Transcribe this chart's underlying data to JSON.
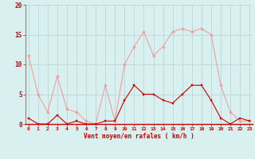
{
  "hours": [
    0,
    1,
    2,
    3,
    4,
    5,
    6,
    7,
    8,
    9,
    10,
    11,
    12,
    13,
    14,
    15,
    16,
    17,
    18,
    19,
    20,
    21,
    22,
    23
  ],
  "wind_avg": [
    1,
    0,
    0,
    1.5,
    0,
    0.5,
    0,
    0,
    0.5,
    0.5,
    4,
    6.5,
    5,
    5,
    4,
    3.5,
    5,
    6.5,
    6.5,
    4,
    1,
    0,
    1,
    0.5
  ],
  "wind_gust": [
    11.5,
    5,
    2,
    8,
    2.5,
    2,
    0.5,
    0,
    6.5,
    0.5,
    10,
    13,
    15.5,
    11.5,
    13,
    15.5,
    16,
    15.5,
    16,
    15,
    6.5,
    2,
    0.5,
    0.5
  ],
  "color_avg": "#cc0000",
  "color_gust": "#f0a0a0",
  "bg_color": "#d8f0f0",
  "grid_color": "#b8d0d0",
  "axis_color": "#cc0000",
  "border_color": "#888888",
  "xlabel": "Vent moyen/en rafales ( km/h )",
  "ylim": [
    0,
    20
  ],
  "yticks": [
    0,
    5,
    10,
    15,
    20
  ],
  "marker_avg": "s",
  "marker_gust": "D"
}
